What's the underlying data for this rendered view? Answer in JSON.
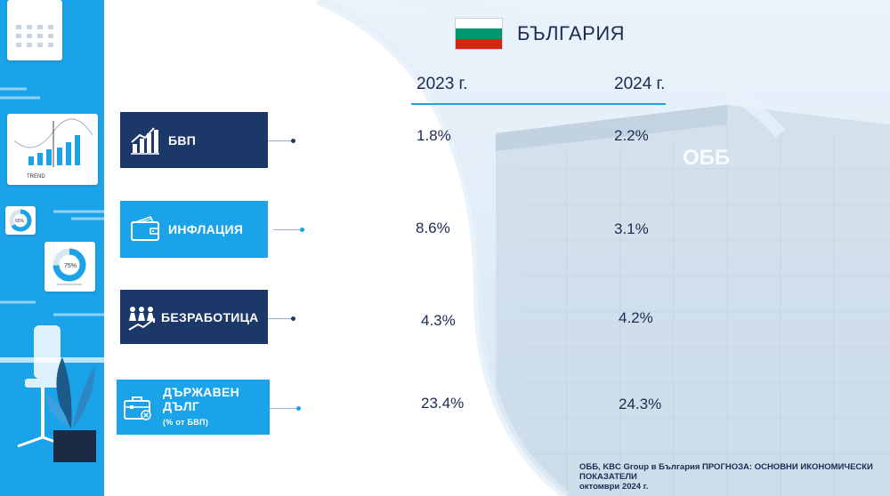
{
  "header": {
    "country": "БЪЛГАРИЯ",
    "flag_colors": [
      "#ffffff",
      "#00966e",
      "#d62612"
    ],
    "years": [
      "2023 г.",
      "2024 г."
    ]
  },
  "decor": {
    "trend_label": "TREND",
    "donut1_label": "65%",
    "donut2_label": "75%"
  },
  "indicators": [
    {
      "label": "БВП",
      "sublabel": "",
      "icon": "bar-chart-icon",
      "values": [
        "1.8%",
        "2.2%"
      ],
      "box_color": "#1b3868"
    },
    {
      "label": "ИНФЛАЦИЯ",
      "sublabel": "",
      "icon": "wallet-icon",
      "values": [
        "8.6%",
        "3.1%"
      ],
      "box_color": "#1aa3e8"
    },
    {
      "label": "БЕЗРАБОТИЦА",
      "sublabel": "",
      "icon": "people-icon",
      "values": [
        "4.3%",
        "4.2%"
      ],
      "box_color": "#1b3868"
    },
    {
      "label": "ДЪРЖАВЕН ДЪЛГ",
      "sublabel": "(% от БВП)",
      "icon": "briefcase-icon",
      "values": [
        "23.4%",
        "24.3%"
      ],
      "box_color": "#1aa3e8"
    }
  ],
  "source": {
    "line1": "ОББ, KBC Group в България ПРОГНОЗА: ОСНОВНИ ИКОНОМИЧЕСКИ ПОКАЗАТЕЛИ",
    "line2": "октомври 2024 г."
  },
  "building_sign": "ОББ"
}
